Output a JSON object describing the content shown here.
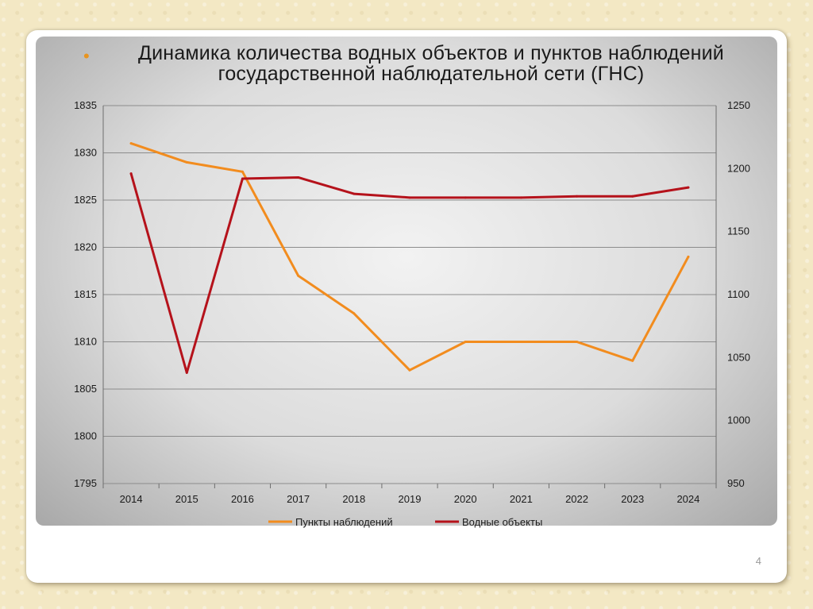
{
  "slide": {
    "title_line1": "Динамика количества водных объектов и пунктов наблюдений",
    "title_line2": "государственной наблюдательной сети (ГНС)",
    "page_number": "4"
  },
  "colors": {
    "series1": "#f28c1e",
    "series2": "#b5121b",
    "bullet": "#e8941f"
  },
  "chart_data": {
    "type": "line",
    "title": "",
    "x": [
      "2014",
      "2015",
      "2016",
      "2017",
      "2018",
      "2019",
      "2020",
      "2021",
      "2022",
      "2023",
      "2024"
    ],
    "series": [
      {
        "name": "Пункты наблюдений",
        "axis": "left",
        "values": [
          1831,
          1829,
          1828,
          1817,
          1813,
          1807,
          1810,
          1810,
          1810,
          1808,
          1819
        ]
      },
      {
        "name": "Водные объекты",
        "axis": "right",
        "values": [
          1196,
          1038,
          1192,
          1193,
          1180,
          1177,
          1177,
          1177,
          1178,
          1178,
          1185
        ]
      }
    ],
    "y_left": {
      "min": 1795,
      "max": 1835,
      "step": 5,
      "ticks": [
        "1795",
        "1800",
        "1805",
        "1810",
        "1815",
        "1820",
        "1825",
        "1830",
        "1835"
      ]
    },
    "y_right": {
      "min": 950,
      "max": 1250,
      "step": 50,
      "ticks": [
        "950",
        "1000",
        "1050",
        "1100",
        "1150",
        "1200",
        "1250"
      ]
    },
    "grid": true,
    "legend_position": "bottom"
  }
}
